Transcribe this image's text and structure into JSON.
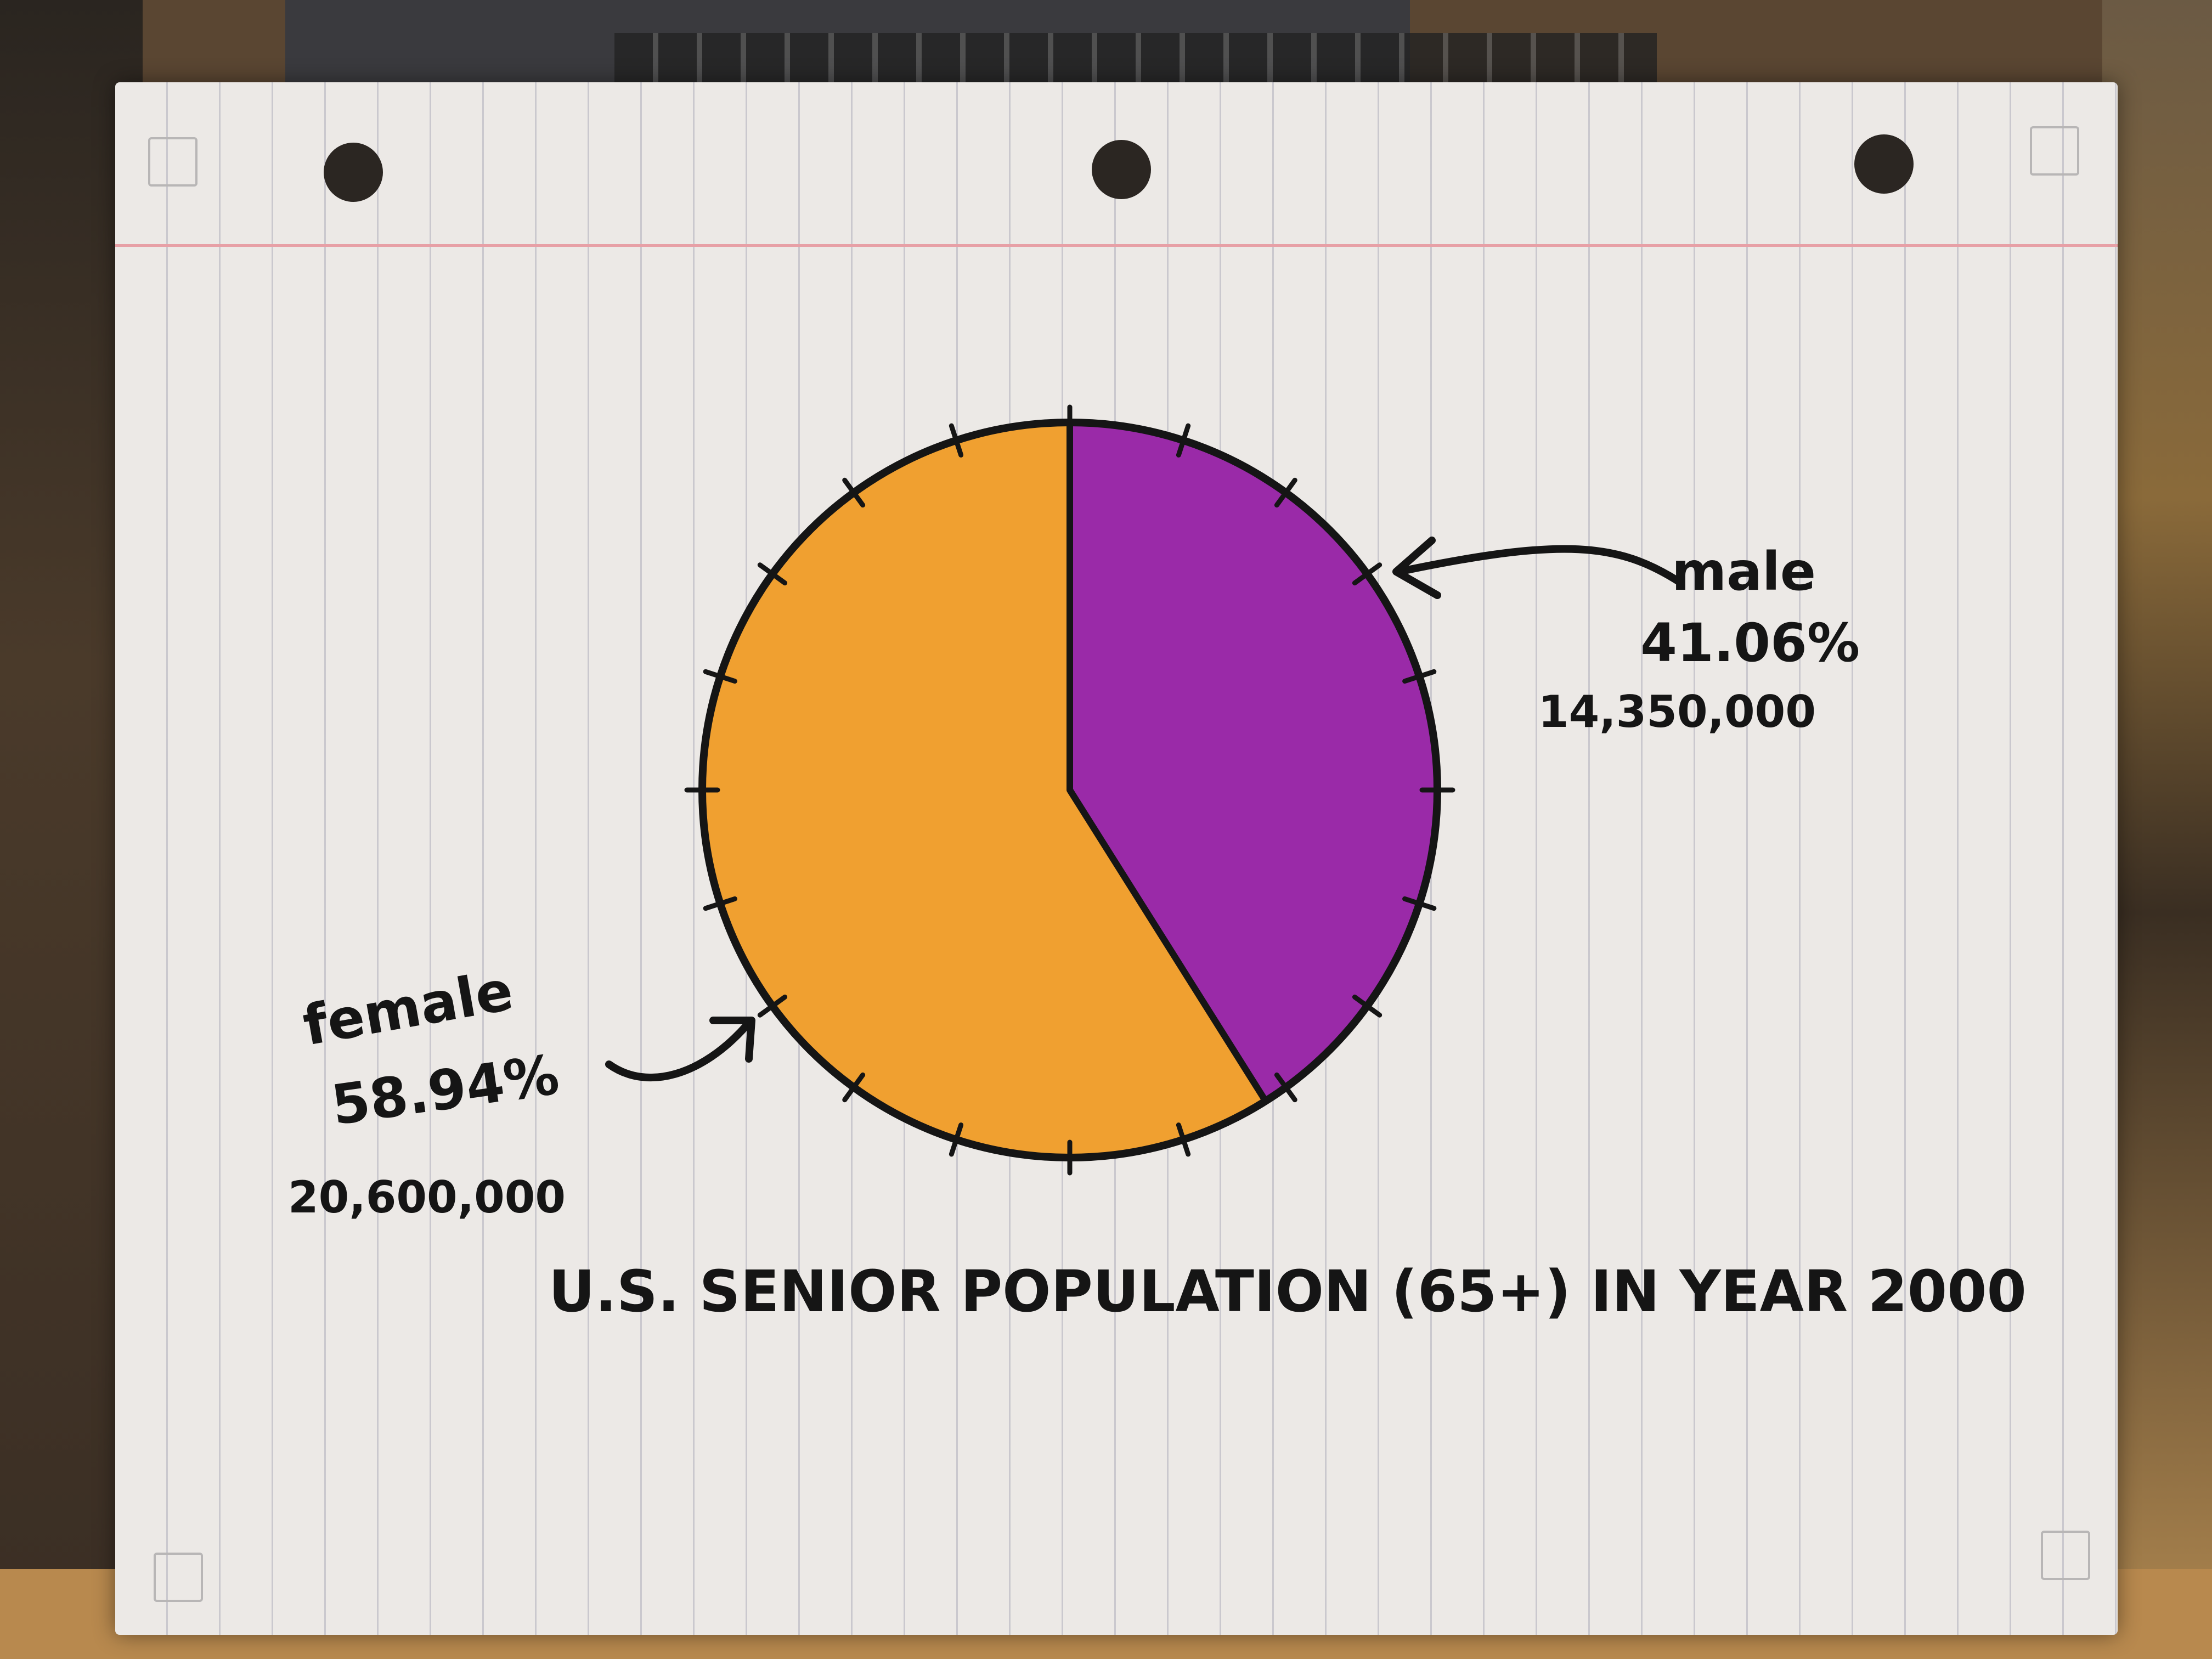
{
  "chart_data": {
    "type": "pie",
    "title": "U.S. SENIOR POPULATION (65+) IN YEAR 2000",
    "slices": [
      {
        "name": "female",
        "percent_label": "58.94%",
        "count_label": "20,600,000",
        "value": 58.94,
        "color": "#f0a030"
      },
      {
        "name": "male",
        "percent_label": "41.06%",
        "count_label": "14,350,000",
        "value": 41.06,
        "color": "#9a2aa8"
      }
    ]
  },
  "colors": {
    "paper": "#ece9e6",
    "ink": "#151515",
    "margin_line": "#e7a0a6"
  }
}
